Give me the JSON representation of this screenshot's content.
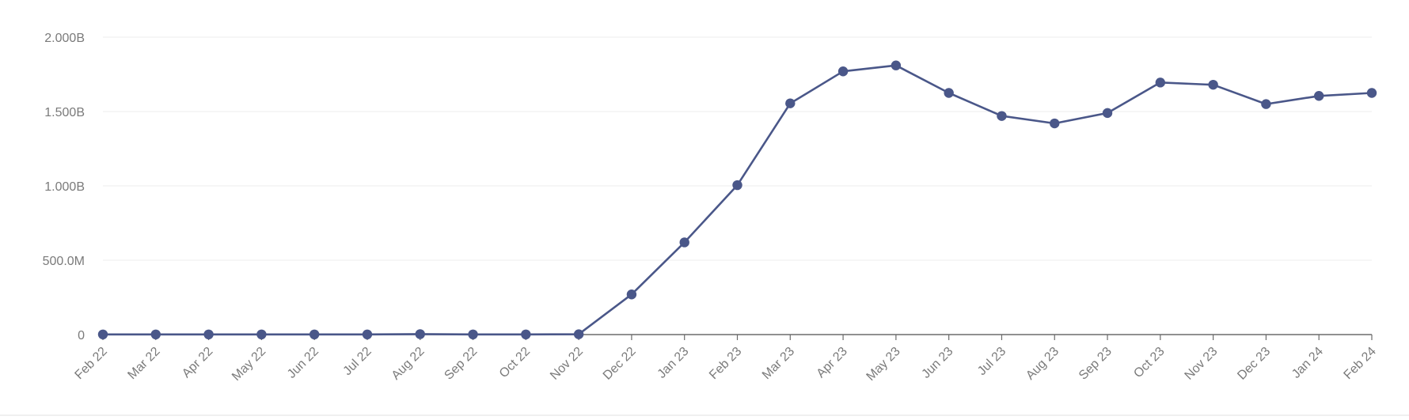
{
  "chart_data": {
    "type": "line",
    "title": "",
    "xlabel": "",
    "ylabel": "",
    "x": [
      "Feb 22",
      "Mar 22",
      "Apr 22",
      "May 22",
      "Jun 22",
      "Jul 22",
      "Aug 22",
      "Sep 22",
      "Oct 22",
      "Nov 22",
      "Dec 22",
      "Jan 23",
      "Feb 23",
      "Mar 23",
      "Apr 23",
      "May 23",
      "Jun 23",
      "Jul 23",
      "Aug 23",
      "Sep 23",
      "Oct 23",
      "Nov 23",
      "Dec 23",
      "Jan 24",
      "Feb 24"
    ],
    "series": [
      {
        "values": [
          1000000,
          1000000,
          1000000,
          1000000,
          1000000,
          1000000,
          3000000,
          1000000,
          1000000,
          2000000,
          270000000,
          620000000,
          1005000000,
          1555000000,
          1770000000,
          1810000000,
          1625000000,
          1470000000,
          1420000000,
          1490000000,
          1695000000,
          1680000000,
          1550000000,
          1605000000,
          1625000000
        ],
        "color": "#4a5789"
      }
    ],
    "ylim": [
      0,
      2000000000
    ],
    "yticks": [
      0,
      500000000,
      1000000000,
      1500000000,
      2000000000
    ],
    "ytick_labels": [
      "0",
      "500.0M",
      "1.000B",
      "1.500B",
      "2.000B"
    ],
    "grid": true,
    "legend": "none",
    "colors": {
      "line": "#4a5789",
      "grid": "#ececec",
      "tick_text": "#7a7a7a",
      "axis": "#6b6b6b"
    }
  }
}
